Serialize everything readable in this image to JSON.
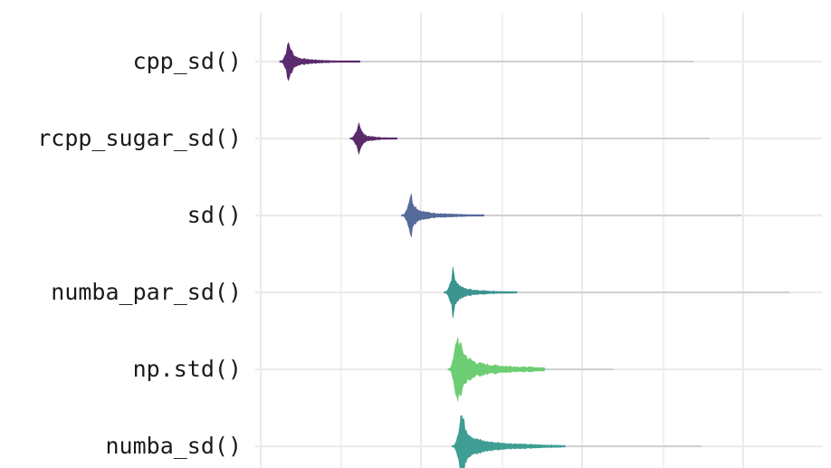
{
  "chart_data": {
    "type": "violin",
    "orientation": "horizontal",
    "title": "",
    "xlabel": "",
    "ylabel": "",
    "legend": "none",
    "grid": true,
    "x_tick_labels_visible": false,
    "categories": [
      "cpp_sd()",
      "rcpp_sugar_sd()",
      "sd()",
      "numba_par_sd()",
      "np.std()",
      "numba_sd()"
    ],
    "series": [
      {
        "label": "cpp_sd()",
        "color": "#5c2a6e",
        "mode": 0.35,
        "p75": 0.68,
        "p95": 1.25,
        "max": 5.4,
        "width": 0.52
      },
      {
        "label": "rcpp_sugar_sd()",
        "color": "#5a2a6b",
        "mode": 1.23,
        "p75": 1.42,
        "p95": 1.7,
        "max": 5.6,
        "width": 0.48
      },
      {
        "label": "sd()",
        "color": "#55699a",
        "mode": 1.87,
        "p75": 2.25,
        "p95": 2.8,
        "max": 6.0,
        "width": 0.58
      },
      {
        "label": "numba_par_sd()",
        "color": "#3a948f",
        "mode": 2.4,
        "p75": 2.75,
        "p95": 3.2,
        "max": 6.6,
        "width": 0.6
      },
      {
        "label": "np.std()",
        "color": "#6dcd73",
        "mode": 2.45,
        "p75": 3.15,
        "p95": 3.55,
        "max": 4.4,
        "width": 0.88
      },
      {
        "label": "numba_sd()",
        "color": "#3f9e94",
        "mode": 2.5,
        "p75": 3.1,
        "p95": 3.8,
        "max": 5.5,
        "width": 0.88
      }
    ],
    "x_range": [
      0,
      7
    ]
  }
}
